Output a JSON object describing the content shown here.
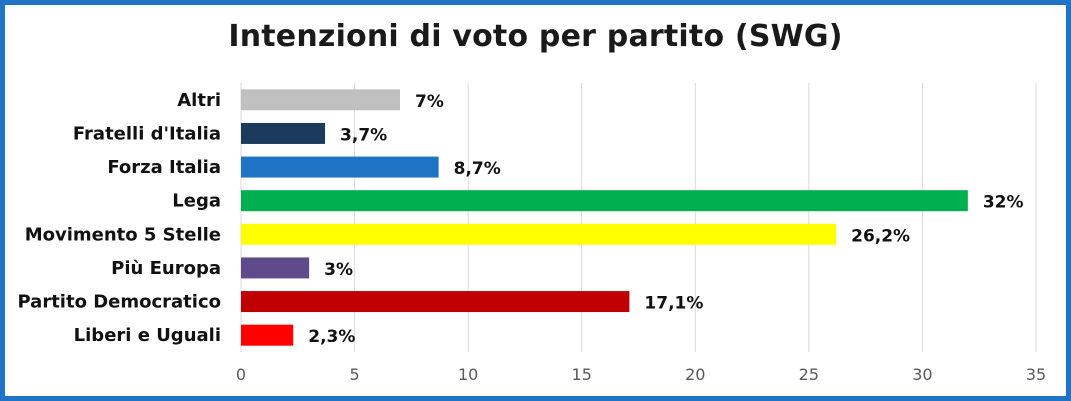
{
  "chart_data": {
    "type": "bar",
    "orientation": "horizontal",
    "title": "Intenzioni di voto per partito (SWG)",
    "categories": [
      "Altri",
      "Fratelli d'Italia",
      "Forza Italia",
      "Lega",
      "Movimento 5 Stelle",
      "Più Europa",
      "Partito Democratico",
      "Liberi e Uguali"
    ],
    "values": [
      7,
      3.7,
      8.7,
      32,
      26.2,
      3,
      17.1,
      2.3
    ],
    "value_labels": [
      "7%",
      "3,7%",
      "8,7%",
      "32%",
      "26,2%",
      "3%",
      "17,1%",
      "2,3%"
    ],
    "colors": [
      "#c0c0c0",
      "#1b3a5c",
      "#1f73c5",
      "#00b050",
      "#ffff00",
      "#5f4b8b",
      "#c00000",
      "#ff0000"
    ],
    "xlim": [
      0,
      35
    ],
    "xticks": [
      0,
      5,
      10,
      15,
      20,
      25,
      30,
      35
    ],
    "xlabel": "",
    "ylabel": "",
    "grid": "vertical",
    "legend": "none"
  },
  "frame_color": "#1f74c6"
}
